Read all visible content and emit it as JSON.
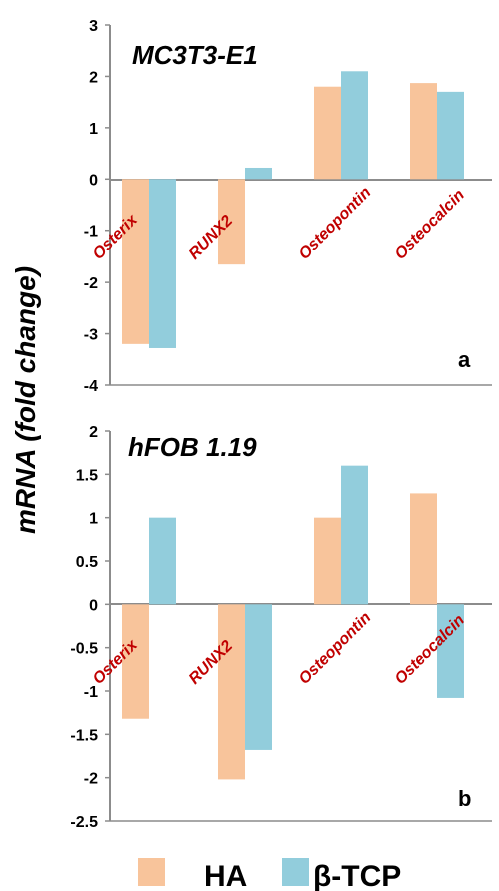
{
  "ylabel": "mRNA (fold change)",
  "legend": [
    {
      "name": "HA",
      "color": "#f8c49b"
    },
    {
      "name": "β-TCP",
      "color": "#92cddc"
    }
  ],
  "chart_data": [
    {
      "type": "bar",
      "title": "MC3T3-E1",
      "panel_label": "a",
      "categories": [
        "Osterix",
        "RUNX2",
        "Osteopontin",
        "Osteocalcin"
      ],
      "ylim": [
        -4,
        3
      ],
      "yticks": [
        "3",
        "2",
        "1",
        "0",
        "-1",
        "-2",
        "-3",
        "-4"
      ],
      "series": [
        {
          "name": "HA",
          "values": [
            -3.2,
            -1.65,
            1.8,
            1.87
          ]
        },
        {
          "name": "β-TCP",
          "values": [
            -3.28,
            0.22,
            2.1,
            1.7
          ]
        }
      ],
      "grid": false
    },
    {
      "type": "bar",
      "title": "hFOB 1.19",
      "panel_label": "b",
      "categories": [
        "Osterix",
        "RUNX2",
        "Osteopontin",
        "Osteocalcin"
      ],
      "ylim": [
        -2.5,
        2
      ],
      "yticks": [
        "2",
        "1.5",
        "1",
        "0.5",
        "0",
        "-0.5",
        "-1",
        "-1.5",
        "-2",
        "-2.5"
      ],
      "series": [
        {
          "name": "HA",
          "values": [
            -1.32,
            -2.02,
            1.0,
            1.28
          ]
        },
        {
          "name": "β-TCP",
          "values": [
            1.0,
            -1.68,
            1.6,
            -1.08
          ]
        }
      ],
      "grid": false
    }
  ]
}
